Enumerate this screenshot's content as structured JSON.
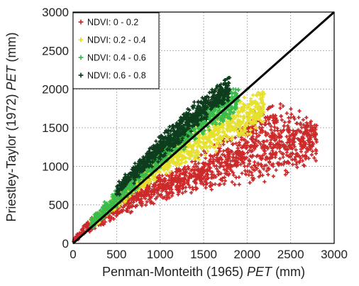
{
  "chart_data": {
    "type": "scatter",
    "xlabel": {
      "prefix": "Penman-Monteith (1965) ",
      "italic": "PET",
      "suffix": " (mm)"
    },
    "ylabel": {
      "prefix": "Priestley-Taylor (1972) ",
      "italic": "PET",
      "suffix": " (mm)"
    },
    "xlim": [
      0,
      3000
    ],
    "ylim": [
      0,
      3000
    ],
    "xticks": [
      "0",
      "500",
      "1000",
      "1500",
      "2000",
      "2500",
      "3000"
    ],
    "yticks": [
      "0",
      "500",
      "1000",
      "1500",
      "2000",
      "2500",
      "3000"
    ],
    "grid": true,
    "legend_position": "top-left",
    "one_to_one_line": true,
    "colors": {
      "ndvi_0_02": "#cc2a2a",
      "ndvi_02_04": "#e6e02e",
      "ndvi_04_06": "#3bbb4b",
      "ndvi_06_08": "#0e3d1e",
      "line": "#000000",
      "grid": "#b0b0b0"
    },
    "series": [
      {
        "name": "NDVI: 0 - 0.2",
        "color": "#cc2a2a",
        "ribbon": [
          [
            0,
            20,
            70
          ],
          [
            200,
            140,
            350
          ],
          [
            500,
            320,
            620
          ],
          [
            800,
            450,
            820
          ],
          [
            1100,
            560,
            980
          ],
          [
            1400,
            640,
            1120
          ],
          [
            1700,
            700,
            1380
          ],
          [
            2000,
            720,
            1720
          ],
          [
            2300,
            830,
            1900
          ],
          [
            2600,
            900,
            1750
          ],
          [
            2800,
            1050,
            1600
          ]
        ],
        "sample_points": [
          [
            60,
            50
          ],
          [
            230,
            280
          ],
          [
            700,
            560
          ],
          [
            1500,
            760
          ],
          [
            1900,
            1100
          ],
          [
            2100,
            1500
          ],
          [
            2400,
            1600
          ],
          [
            2690,
            1410
          ],
          [
            2480,
            1040
          ],
          [
            2200,
            800
          ]
        ]
      },
      {
        "name": "NDVI: 0.2 - 0.4",
        "color": "#e6e02e",
        "ribbon": [
          [
            200,
            170,
            320
          ],
          [
            500,
            420,
            680
          ],
          [
            800,
            700,
            1000
          ],
          [
            1100,
            900,
            1280
          ],
          [
            1400,
            1060,
            1520
          ],
          [
            1700,
            1210,
            1750
          ],
          [
            2000,
            1370,
            1960
          ],
          [
            2200,
            1500,
            2040
          ]
        ],
        "sample_points": [
          [
            650,
            610
          ],
          [
            1200,
            1050
          ],
          [
            1800,
            1500
          ],
          [
            2050,
            1800
          ],
          [
            2150,
            1600
          ]
        ]
      },
      {
        "name": "NDVI: 0.4 - 0.6",
        "color": "#3bbb4b",
        "ribbon": [
          [
            200,
            150,
            330
          ],
          [
            500,
            450,
            720
          ],
          [
            800,
            760,
            1080
          ],
          [
            1100,
            1060,
            1400
          ],
          [
            1400,
            1320,
            1700
          ],
          [
            1700,
            1520,
            1970
          ],
          [
            1900,
            1680,
            2060
          ]
        ],
        "sample_points": [
          [
            350,
            330
          ],
          [
            900,
            900
          ],
          [
            1500,
            1450
          ],
          [
            1800,
            1780
          ],
          [
            2000,
            2000
          ]
        ]
      },
      {
        "name": "NDVI: 0.6 - 0.8",
        "color": "#0e3d1e",
        "ribbon": [
          [
            500,
            580,
            780
          ],
          [
            800,
            880,
            1180
          ],
          [
            1100,
            1160,
            1530
          ],
          [
            1400,
            1460,
            1850
          ],
          [
            1600,
            1650,
            2070
          ],
          [
            1800,
            1850,
            2180
          ]
        ],
        "sample_points": [
          [
            700,
            780
          ],
          [
            1200,
            1320
          ],
          [
            1500,
            1620
          ],
          [
            1750,
            2120
          ],
          [
            1800,
            2000
          ]
        ]
      }
    ]
  }
}
